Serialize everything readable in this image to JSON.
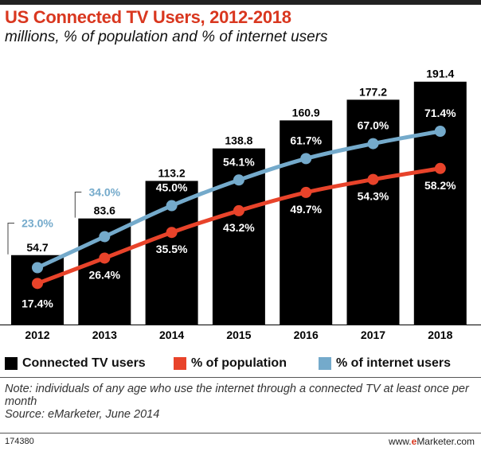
{
  "title": "US Connected TV Users, 2012-2018",
  "subtitle": "millions, % of population and % of internet users",
  "chart_data": {
    "type": "bar",
    "categories": [
      "2012",
      "2013",
      "2014",
      "2015",
      "2016",
      "2017",
      "2018"
    ],
    "series": [
      {
        "name": "Connected TV users",
        "type": "bar",
        "color": "#000000",
        "values": [
          54.7,
          83.6,
          113.2,
          138.8,
          160.9,
          177.2,
          191.4
        ],
        "labels": [
          "54.7",
          "83.6",
          "113.2",
          "138.8",
          "160.9",
          "177.2",
          "191.4"
        ]
      },
      {
        "name": "% of population",
        "type": "line",
        "color": "#e8432a",
        "values": [
          17.4,
          26.4,
          35.5,
          43.2,
          49.7,
          54.3,
          58.2
        ],
        "labels": [
          "17.4%",
          "26.4%",
          "35.5%",
          "43.2%",
          "49.7%",
          "54.3%",
          "58.2%"
        ]
      },
      {
        "name": "% of internet users",
        "type": "line",
        "color": "#74aacb",
        "values": [
          23.0,
          34.0,
          45.0,
          54.1,
          61.7,
          67.0,
          71.4
        ],
        "labels": [
          "23.0%",
          "34.0%",
          "45.0%",
          "54.1%",
          "61.7%",
          "67.0%",
          "71.4%"
        ]
      }
    ],
    "ylim": [
      0,
      200
    ],
    "grid": false,
    "legend": "bottom"
  },
  "note": "Note: individuals of any age who use the internet through a connected TV at least once per month",
  "source": "Source: eMarketer, June 2014",
  "footer": {
    "chart_id": "174380",
    "brand_prefix": "www.",
    "brand_e": "e",
    "brand_suffix": "Marketer.com"
  }
}
